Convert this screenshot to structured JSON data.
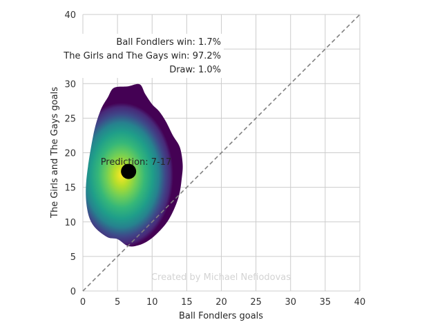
{
  "chart_data": {
    "type": "heatmap",
    "title": "",
    "xlabel": "Ball Fondlers goals",
    "ylabel": "The Girls and The Gays goals",
    "xlim": [
      0,
      40
    ],
    "ylim": [
      0,
      40
    ],
    "xticks": [
      0,
      5,
      10,
      15,
      20,
      25,
      30,
      35,
      40
    ],
    "yticks": [
      0,
      5,
      10,
      15,
      20,
      25,
      30,
      35,
      40
    ],
    "grid": true,
    "colormap": "viridis",
    "density_outline": [
      [
        5,
        7.5
      ],
      [
        6.5,
        6.5
      ],
      [
        8,
        6.6
      ],
      [
        9.5,
        7.3
      ],
      [
        11,
        8.6
      ],
      [
        12.5,
        10.5
      ],
      [
        13.8,
        13.5
      ],
      [
        14.3,
        16.5
      ],
      [
        14.4,
        18.5
      ],
      [
        14,
        20.8
      ],
      [
        13,
        22.5
      ],
      [
        12,
        24.5
      ],
      [
        11,
        26
      ],
      [
        10,
        27
      ],
      [
        9,
        28.5
      ],
      [
        8.2,
        29.9
      ],
      [
        6.5,
        29.6
      ],
      [
        4.5,
        29.4
      ],
      [
        3.6,
        28
      ],
      [
        2.5,
        26
      ],
      [
        1.5,
        22.5
      ],
      [
        0.5,
        16
      ],
      [
        0.6,
        12
      ],
      [
        1.5,
        9.5
      ],
      [
        3.5,
        7.8
      ]
    ],
    "density_peak": [
      5.6,
      16.8
    ],
    "diagonal": {
      "from": [
        0,
        0
      ],
      "to": [
        40,
        40
      ],
      "color": "#808080",
      "style": "dashed"
    },
    "prediction_point": {
      "x": 6.6,
      "y": 17.3,
      "label": "Prediction: 7-17"
    },
    "annotations": [
      {
        "id": "home",
        "text": "Ball Fondlers win: 1.7%"
      },
      {
        "id": "away",
        "text": "The Girls and The Gays win: 97.2%"
      },
      {
        "id": "draw",
        "text": "Draw: 1.0%"
      }
    ],
    "watermark": "Created by Michael Nefiodovas"
  }
}
